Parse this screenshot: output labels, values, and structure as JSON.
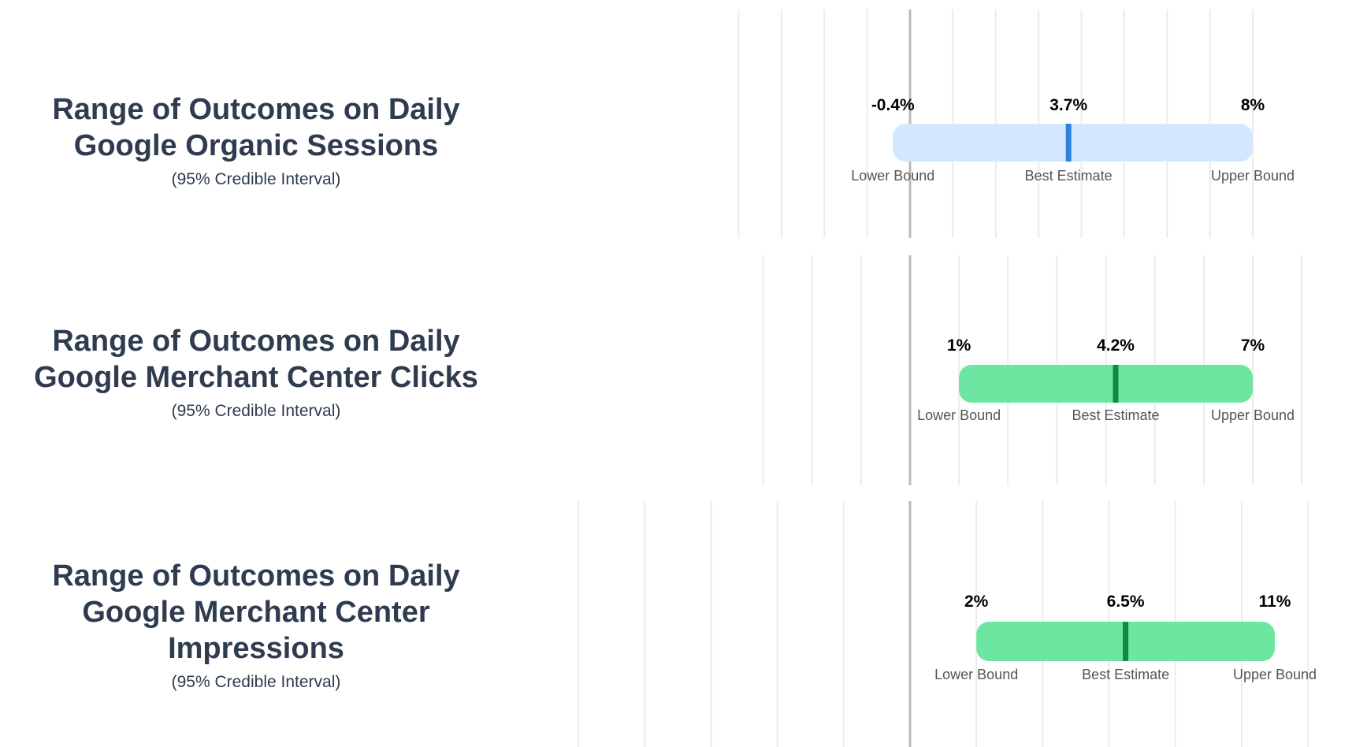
{
  "colors": {
    "title": "#2f3b4f",
    "grid": "#ececec",
    "zero_line": "#b9b9b9",
    "blue_bar": "#d3e8fd",
    "blue_marker": "#2f7fe0",
    "green_bar": "#6ce6a0",
    "green_marker": "#0f8a42"
  },
  "chart_data": [
    {
      "type": "interval",
      "title_line1": "Range of Outcomes on Daily",
      "title_line2": "Google Organic Sessions",
      "subtitle": "(95% Credible Interval)",
      "lower": -0.4,
      "estimate": 3.7,
      "upper": 8,
      "lower_text": "-0.4%",
      "estimate_text": "3.7%",
      "upper_text": "8%",
      "lower_label": "Lower Bound",
      "estimate_label": "Best Estimate",
      "upper_label": "Upper Bound",
      "theme": "blue",
      "xlim": [
        -4,
        8.6
      ],
      "grid_step": 1
    },
    {
      "type": "interval",
      "title_line1": "Range of Outcomes on Daily",
      "title_line2": "Google Merchant Center Clicks",
      "subtitle": "(95% Credible Interval)",
      "lower": 1,
      "estimate": 4.2,
      "upper": 7,
      "lower_text": "1%",
      "estimate_text": "4.2%",
      "upper_text": "7%",
      "lower_label": "Lower Bound",
      "estimate_label": "Best Estimate",
      "upper_label": "Upper Bound",
      "theme": "green",
      "xlim": [
        -3.4,
        8.1
      ],
      "grid_step": 1
    },
    {
      "type": "interval",
      "title_line1": "Range of Outcomes on Daily",
      "title_line2": "Google Merchant Center Impressions",
      "subtitle": "(95% Credible Interval)",
      "lower": 2,
      "estimate": 6.5,
      "upper": 11,
      "lower_text": "2%",
      "estimate_text": "6.5%",
      "upper_text": "11%",
      "lower_label": "Lower Bound",
      "estimate_label": "Best Estimate",
      "upper_label": "Upper Bound",
      "theme": "green",
      "xlim": [
        -10,
        12
      ],
      "grid_step": 2
    }
  ]
}
